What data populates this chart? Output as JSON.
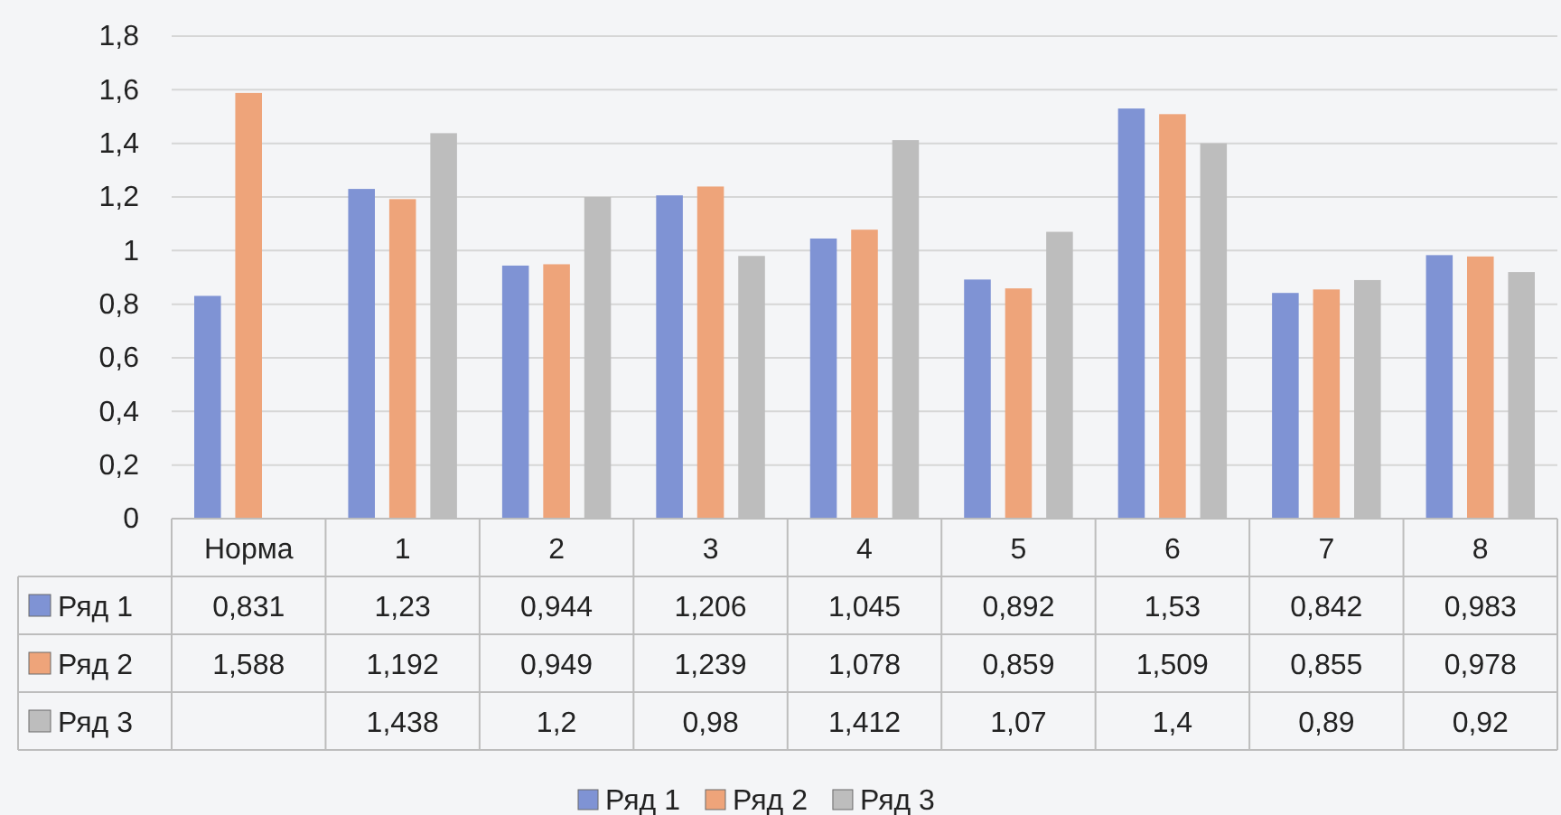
{
  "chart_data": {
    "type": "bar",
    "categories": [
      "Норма",
      "1",
      "2",
      "3",
      "4",
      "5",
      "6",
      "7",
      "8"
    ],
    "series": [
      {
        "name": "Ряд 1",
        "color": "#7f93d4",
        "values": [
          0.831,
          1.23,
          0.944,
          1.206,
          1.045,
          0.892,
          1.53,
          0.842,
          0.983
        ],
        "value_labels": [
          "0,831",
          "1,23",
          "0,944",
          "1,206",
          "1,045",
          "0,892",
          "1,53",
          "0,842",
          "0,983"
        ]
      },
      {
        "name": "Ряд 2",
        "color": "#eea47a",
        "values": [
          1.588,
          1.192,
          0.949,
          1.239,
          1.078,
          0.859,
          1.509,
          0.855,
          0.978
        ],
        "value_labels": [
          "1,588",
          "1,192",
          "0,949",
          "1,239",
          "1,078",
          "0,859",
          "1,509",
          "0,855",
          "0,978"
        ]
      },
      {
        "name": "Ряд 3",
        "color": "#bdbdbd",
        "values": [
          null,
          1.438,
          1.2,
          0.98,
          1.412,
          1.07,
          1.4,
          0.89,
          0.92
        ],
        "value_labels": [
          null,
          "1,438",
          "1,2",
          "0,98",
          "1,412",
          "1,07",
          "1,4",
          "0,89",
          "0,92"
        ]
      }
    ],
    "ylim": [
      0,
      1.8
    ],
    "yticks": [
      0,
      {
        "value": 0.2,
        "label": "0,2"
      },
      {
        "value": 0.4,
        "label": "0,4"
      },
      {
        "value": 0.6,
        "label": "0,6"
      },
      {
        "value": 0.8,
        "label": "0,8"
      },
      1,
      {
        "value": 1.2,
        "label": "1,2"
      },
      {
        "value": 1.4,
        "label": "1,4"
      },
      {
        "value": 1.6,
        "label": "1,6"
      },
      {
        "value": 1.8,
        "label": "1,8"
      }
    ],
    "grid": true,
    "legend": "bottom"
  }
}
